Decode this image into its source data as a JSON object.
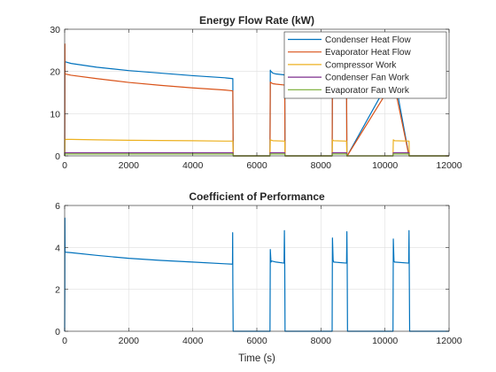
{
  "chart_data": [
    {
      "type": "line",
      "title": "Energy Flow Rate (kW)",
      "xlabel": "",
      "ylabel": "",
      "xlim": [
        0,
        12000
      ],
      "ylim": [
        0,
        30
      ],
      "xticks": [
        0,
        2000,
        4000,
        6000,
        8000,
        10000,
        12000
      ],
      "yticks": [
        0,
        10,
        20,
        30
      ],
      "grid": true,
      "legend_position": "top-right",
      "series": [
        {
          "name": "Condenser Heat Flow",
          "color": "#0072BD",
          "x": [
            0,
            5,
            10,
            200,
            1000,
            2000,
            3000,
            4000,
            5000,
            5240,
            5250,
            5260,
            6410,
            6420,
            6430,
            6500,
            6600,
            6850,
            6870,
            6880,
            8350,
            8360,
            8370,
            8390,
            8800,
            8810,
            8820,
            10250,
            10260,
            10270,
            10290,
            10750,
            10760,
            10770,
            12000
          ],
          "y": [
            0,
            20.5,
            22.3,
            21.9,
            21.0,
            20.2,
            19.6,
            19.0,
            18.5,
            18.3,
            18.3,
            0,
            0,
            20.3,
            20.1,
            19.6,
            19.4,
            19.2,
            19.2,
            0,
            0,
            19.5,
            19.4,
            19.2,
            19.0,
            0,
            0,
            19.5,
            19.4,
            19.2,
            19.0,
            0,
            0,
            0,
            0
          ]
        },
        {
          "name": "Evaporator Heat Flow",
          "color": "#D95319",
          "x": [
            0,
            5,
            8,
            10,
            20,
            200,
            1000,
            2000,
            3000,
            4000,
            5000,
            5240,
            5250,
            5260,
            6410,
            6420,
            6430,
            6500,
            6600,
            6850,
            6870,
            6880,
            8350,
            8360,
            8370,
            8390,
            8800,
            8810,
            8820,
            10250,
            10260,
            10270,
            10290,
            10750,
            10760,
            10770,
            12000
          ],
          "y": [
            0,
            10.0,
            26.5,
            19.5,
            19.4,
            19.1,
            18.3,
            17.4,
            16.7,
            16.1,
            15.6,
            15.4,
            15.4,
            0,
            0,
            17.5,
            17.4,
            17.1,
            17.0,
            16.8,
            16.8,
            0,
            0,
            17.5,
            17.4,
            17.1,
            16.8,
            0,
            0,
            17.5,
            17.4,
            17.1,
            16.8,
            0,
            0,
            0,
            0
          ]
        },
        {
          "name": "Compressor Work",
          "color": "#EDB120",
          "x": [
            0,
            10,
            200,
            1000,
            2000,
            3000,
            4000,
            5000,
            5250,
            5260,
            6410,
            6420,
            6500,
            6870,
            6880,
            8350,
            8360,
            8400,
            8800,
            8810,
            10250,
            10260,
            10300,
            10750,
            10760,
            12000
          ],
          "y": [
            0,
            3.9,
            3.9,
            3.8,
            3.7,
            3.65,
            3.6,
            3.5,
            3.5,
            0,
            0,
            3.8,
            3.6,
            3.5,
            0,
            0,
            3.8,
            3.6,
            3.5,
            0,
            0,
            3.8,
            3.6,
            3.5,
            0,
            0
          ]
        },
        {
          "name": "Condenser Fan Work",
          "color": "#7E2F8E",
          "x": [
            0,
            10,
            5250,
            5260,
            6410,
            6420,
            6870,
            6880,
            8350,
            8360,
            8800,
            8810,
            10250,
            10260,
            10750,
            10760,
            12000
          ],
          "y": [
            0,
            0.75,
            0.75,
            0,
            0,
            0.75,
            0.75,
            0,
            0,
            0.75,
            0.75,
            0,
            0,
            0.75,
            0.75,
            0,
            0
          ]
        },
        {
          "name": "Evaporator Fan Work",
          "color": "#77AC30",
          "x": [
            0,
            10,
            5250,
            5260,
            6410,
            6420,
            6870,
            6880,
            8350,
            8360,
            8800,
            8810,
            10250,
            10260,
            10750,
            10760,
            12000
          ],
          "y": [
            0,
            0.45,
            0.45,
            0,
            0,
            0.45,
            0.45,
            0,
            0,
            0.45,
            0.45,
            0,
            0,
            0.45,
            0.45,
            0,
            0
          ]
        }
      ]
    },
    {
      "type": "line",
      "title": "Coefficient of Performance",
      "xlabel": "Time (s)",
      "ylabel": "",
      "xlim": [
        0,
        12000
      ],
      "ylim": [
        0,
        6
      ],
      "xticks": [
        0,
        2000,
        4000,
        6000,
        8000,
        10000,
        12000
      ],
      "yticks": [
        0,
        2,
        4,
        6
      ],
      "grid": true,
      "series": [
        {
          "name": "",
          "color": "#0072BD",
          "x": [
            0,
            5,
            8,
            12,
            30,
            200,
            1000,
            2000,
            3000,
            4000,
            5000,
            5240,
            5245,
            5250,
            5260,
            6410,
            6420,
            6440,
            6460,
            6600,
            6850,
            6860,
            6870,
            6880,
            8350,
            8360,
            8380,
            8400,
            8800,
            8810,
            8820,
            8830,
            10250,
            10260,
            10280,
            10300,
            10740,
            10750,
            10760,
            10770,
            12000
          ],
          "y": [
            0,
            2.0,
            5.4,
            3.8,
            3.77,
            3.75,
            3.62,
            3.48,
            3.38,
            3.3,
            3.22,
            3.2,
            4.7,
            2.3,
            0,
            0,
            3.9,
            3.3,
            3.35,
            3.3,
            3.25,
            4.8,
            3.2,
            0,
            0,
            4.45,
            3.4,
            3.3,
            3.25,
            4.75,
            3.2,
            0,
            0,
            4.4,
            3.35,
            3.3,
            3.25,
            4.8,
            2.4,
            0,
            0
          ]
        }
      ]
    }
  ]
}
